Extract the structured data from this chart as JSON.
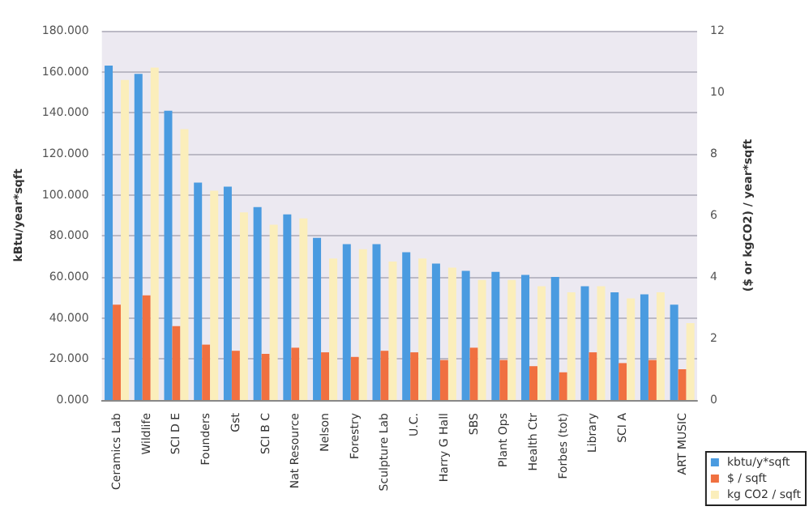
{
  "chart_data": {
    "type": "bar",
    "ylabel": "kBtu/year*sqft",
    "y2label": "($ or kgCO2) / year*sqft",
    "categories": [
      "Ceramics Lab",
      "Wildlife",
      "SCI D E",
      "Founders",
      "Gst",
      "SCI B C",
      "Nat Resource",
      "Nelson",
      "Forestry",
      "Sculpture Lab",
      "U.C.",
      "Harry G Hall",
      "SBS",
      "Plant Ops",
      "Health Ctr",
      "Forbes (tot)",
      "Library",
      "SCI A",
      null,
      "ART MUSIC"
    ],
    "series": [
      {
        "name": "kbtu/y*sqft",
        "color": "#4a9be0",
        "values": [
          163,
          159,
          141,
          106,
          104,
          94,
          90.5,
          79,
          76,
          76,
          72,
          66.5,
          63,
          62.5,
          61,
          60,
          55.5,
          52.5,
          51.5,
          46.5
        ]
      },
      {
        "name": "$ / sqft",
        "color": "#f07040",
        "axis": "y2",
        "values": [
          3.1,
          3.4,
          2.4,
          1.8,
          1.6,
          1.5,
          1.7,
          1.55,
          1.4,
          1.6,
          1.55,
          1.3,
          1.7,
          1.3,
          1.1,
          0.9,
          1.55,
          1.2,
          1.3,
          1.0
        ]
      },
      {
        "name": "kg CO2 / sqft",
        "color": "#fbeebb",
        "axis": "y2",
        "values": [
          10.4,
          10.8,
          8.8,
          6.8,
          6.1,
          5.7,
          5.9,
          4.6,
          4.9,
          4.5,
          4.6,
          4.3,
          3.9,
          3.9,
          3.7,
          3.5,
          3.7,
          3.3,
          3.5,
          2.5
        ]
      }
    ],
    "ylim": [
      0,
      180
    ],
    "yticks": [
      {
        "value": 0,
        "label": "0.000"
      },
      {
        "value": 20,
        "label": "20.000"
      },
      {
        "value": 40,
        "label": "40.000"
      },
      {
        "value": 60,
        "label": "60.000"
      },
      {
        "value": 80,
        "label": "80.000"
      },
      {
        "value": 100,
        "label": "100.000"
      },
      {
        "value": 120,
        "label": "120.000"
      },
      {
        "value": 140,
        "label": "140.000"
      },
      {
        "value": 160,
        "label": "160.000"
      },
      {
        "value": 180,
        "label": "180.000"
      }
    ],
    "y2lim": [
      0,
      12
    ],
    "y2ticks": [
      0,
      2,
      4,
      6,
      8,
      10,
      12
    ],
    "grid": "y",
    "legend": "bottom right"
  }
}
